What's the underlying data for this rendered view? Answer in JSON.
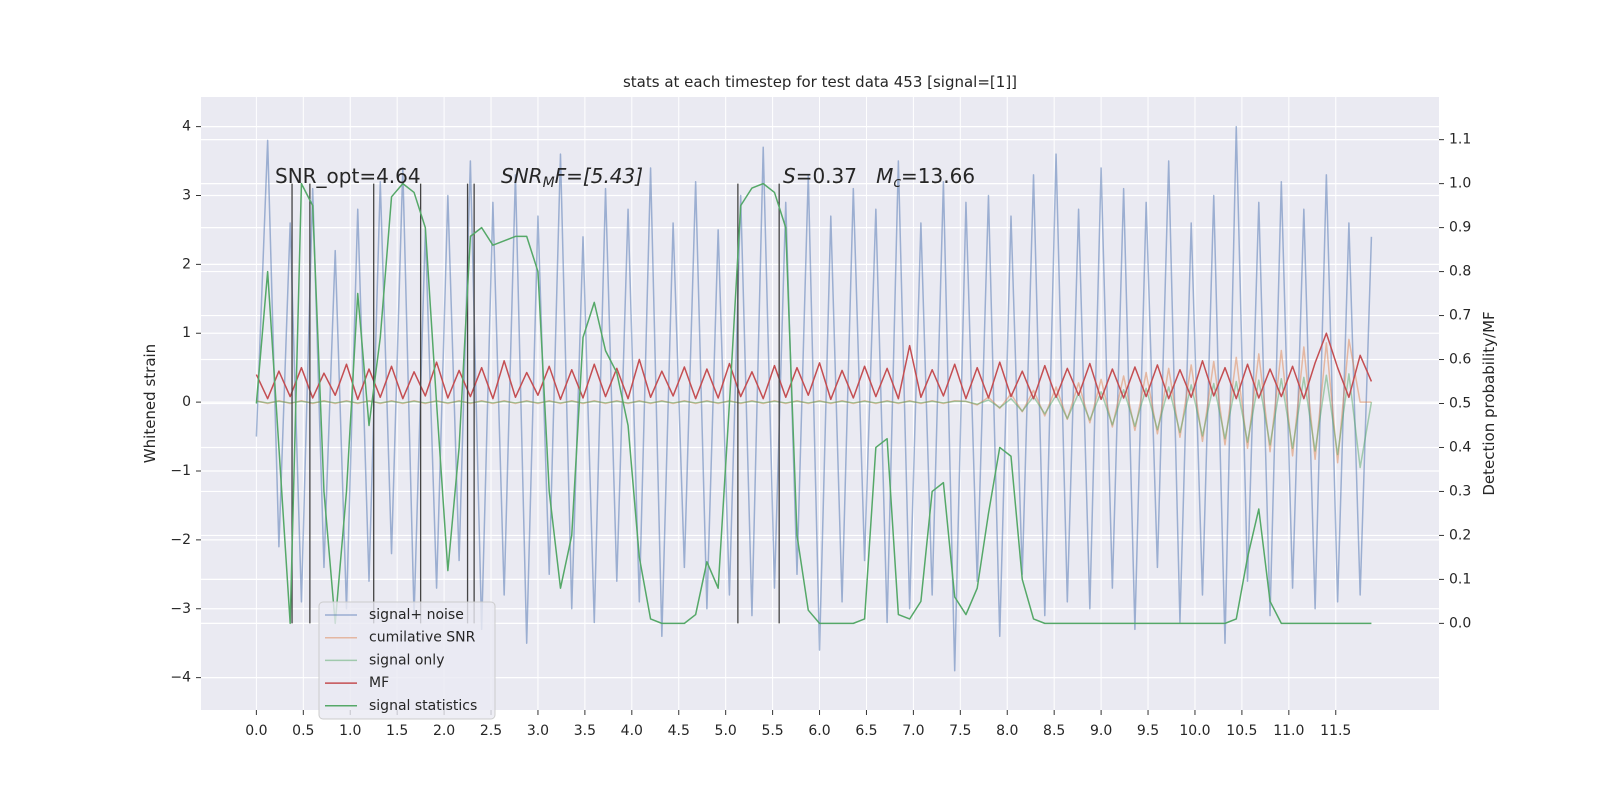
{
  "chart_data": {
    "type": "line",
    "title": "stats at each timestep for test data 453 [signal=[1]]",
    "ylabel": "Whitened strain",
    "y2label": "Detection probability/MF",
    "grid": true,
    "background": "#eaeaf2",
    "xlim": [
      -0.59,
      12.6
    ],
    "ylim": [
      -4.47,
      4.43
    ],
    "y2lim": [
      -0.197,
      1.197
    ],
    "xticks": [
      {
        "value": 0,
        "label": "0.0"
      },
      0.5,
      {
        "value": 1,
        "label": "1.0"
      },
      1.5,
      {
        "value": 2,
        "label": "2.0"
      },
      2.5,
      {
        "value": 3,
        "label": "3.0"
      },
      3.5,
      {
        "value": 4,
        "label": "4.0"
      },
      4.5,
      {
        "value": 5,
        "label": "5.0"
      },
      5.5,
      {
        "value": 6,
        "label": "6.0"
      },
      6.5,
      {
        "value": 7,
        "label": "7.0"
      },
      7.5,
      {
        "value": 8,
        "label": "8.0"
      },
      8.5,
      {
        "value": 9,
        "label": "9.0"
      },
      9.5,
      {
        "value": 10,
        "label": "10.0"
      },
      10.5,
      {
        "value": 11,
        "label": "11.0"
      },
      11.5
    ],
    "yticks": [
      {
        "value": -4,
        "label": "−4"
      },
      {
        "value": -3,
        "label": "−3"
      },
      {
        "value": -2,
        "label": "−2"
      },
      {
        "value": -1,
        "label": "−1"
      },
      0,
      1,
      2,
      3,
      4
    ],
    "y2ticks": [
      {
        "value": 0,
        "label": "0.0"
      },
      0.1,
      0.2,
      0.3,
      0.4,
      0.5,
      0.6,
      0.7,
      0.8,
      0.9,
      {
        "value": 1,
        "label": "1.0"
      },
      1.1
    ],
    "x": [
      0,
      0.12,
      0.24,
      0.36,
      0.48,
      0.6,
      0.72,
      0.84,
      0.96,
      1.08,
      1.2,
      1.32,
      1.44,
      1.56,
      1.68,
      1.8,
      1.92,
      2.04,
      2.16,
      2.28,
      2.4,
      2.52,
      2.64,
      2.76,
      2.88,
      3,
      3.12,
      3.24,
      3.36,
      3.48,
      3.6,
      3.72,
      3.84,
      3.96,
      4.08,
      4.2,
      4.32,
      4.44,
      4.56,
      4.68,
      4.8,
      4.92,
      5.04,
      5.16,
      5.28,
      5.4,
      5.52,
      5.64,
      5.76,
      5.88,
      6,
      6.12,
      6.24,
      6.36,
      6.48,
      6.6,
      6.72,
      6.84,
      6.96,
      7.08,
      7.2,
      7.32,
      7.44,
      7.56,
      7.68,
      7.8,
      7.92,
      8.04,
      8.16,
      8.28,
      8.4,
      8.52,
      8.64,
      8.76,
      8.88,
      9,
      9.12,
      9.24,
      9.36,
      9.48,
      9.6,
      9.72,
      9.84,
      9.96,
      10.08,
      10.2,
      10.32,
      10.44,
      10.56,
      10.68,
      10.8,
      10.92,
      11.04,
      11.16,
      11.28,
      11.4,
      11.52,
      11.64,
      11.76,
      11.88
    ],
    "series": [
      {
        "name": "signal+ noise",
        "color": "#4c72b0",
        "alpha": 0.5,
        "values": [
          -0.5,
          3.8,
          -2.1,
          2.6,
          -2.9,
          3.1,
          -2.4,
          2.2,
          -3.0,
          2.8,
          -2.6,
          3.2,
          -2.2,
          3.4,
          -3.1,
          2.5,
          -2.7,
          3.0,
          -2.3,
          3.5,
          -3.3,
          2.9,
          -2.8,
          3.3,
          -3.5,
          2.7,
          -2.5,
          3.6,
          -3.0,
          2.4,
          -3.2,
          3.1,
          -2.6,
          2.8,
          -2.9,
          3.4,
          -3.4,
          2.6,
          -2.4,
          3.2,
          -3.0,
          2.5,
          -2.8,
          3.0,
          -3.1,
          3.7,
          -2.7,
          2.9,
          -2.5,
          3.3,
          -3.6,
          2.7,
          -2.9,
          3.1,
          -2.3,
          2.8,
          -3.2,
          3.5,
          -3.0,
          2.6,
          -2.8,
          3.2,
          -3.9,
          2.9,
          -2.6,
          3.0,
          -3.4,
          2.7,
          -2.5,
          3.3,
          -3.1,
          3.6,
          -2.9,
          2.8,
          -3.0,
          3.4,
          -2.7,
          3.1,
          -3.3,
          2.9,
          -2.4,
          3.5,
          -3.2,
          2.6,
          -2.8,
          3.0,
          -3.5,
          4.0,
          -2.6,
          2.9,
          -3.1,
          3.2,
          -2.7,
          2.8,
          -3.0,
          3.3,
          -2.9,
          2.6,
          -2.8,
          2.4
        ]
      },
      {
        "name": "cumilative SNR",
        "color": "#dd8452",
        "alpha": 0.5,
        "values": [
          0.02,
          -0.02,
          0.02,
          -0.02,
          0.02,
          -0.02,
          0.02,
          -0.02,
          0.02,
          -0.02,
          0.02,
          -0.02,
          0.02,
          -0.02,
          0.02,
          -0.02,
          0.02,
          -0.02,
          0.02,
          -0.02,
          0.02,
          -0.02,
          0.02,
          -0.02,
          0.02,
          -0.02,
          0.02,
          -0.02,
          0.02,
          -0.02,
          0.02,
          -0.02,
          0.02,
          -0.02,
          0.02,
          -0.02,
          0.02,
          -0.02,
          0.02,
          -0.02,
          0.02,
          -0.02,
          0.02,
          -0.02,
          0.02,
          -0.02,
          0.02,
          -0.02,
          0.02,
          -0.02,
          0.02,
          -0.02,
          0.02,
          -0.02,
          0.02,
          -0.02,
          0.02,
          -0.02,
          0.02,
          -0.02,
          0.02,
          -0.02,
          0.02,
          0.01,
          -0.04,
          0.07,
          -0.09,
          0.12,
          -0.14,
          0.17,
          -0.2,
          0.22,
          -0.25,
          0.28,
          -0.3,
          0.33,
          -0.36,
          0.38,
          -0.41,
          0.43,
          -0.46,
          0.49,
          -0.51,
          0.54,
          -0.57,
          0.59,
          -0.62,
          0.65,
          -0.67,
          0.7,
          -0.72,
          0.75,
          -0.78,
          0.8,
          -0.83,
          0.86,
          -0.88,
          0.91,
          0.0,
          0.0
        ]
      },
      {
        "name": "signal only",
        "color": "#55a868",
        "alpha": 0.5,
        "values": [
          0.01,
          -0.01,
          0.01,
          -0.01,
          0.01,
          -0.01,
          0.01,
          -0.01,
          0.01,
          -0.01,
          0.01,
          -0.01,
          0.01,
          -0.01,
          0.01,
          -0.01,
          0.01,
          -0.01,
          0.01,
          -0.01,
          0.01,
          -0.01,
          0.01,
          -0.01,
          0.01,
          -0.01,
          0.01,
          -0.01,
          0.01,
          -0.01,
          0.01,
          -0.01,
          0.01,
          -0.01,
          0.01,
          -0.01,
          0.01,
          -0.01,
          0.01,
          -0.01,
          0.01,
          -0.01,
          0.01,
          -0.01,
          0.01,
          -0.01,
          0.01,
          -0.01,
          0.01,
          -0.01,
          0.01,
          -0.01,
          0.01,
          -0.01,
          0.01,
          -0.01,
          0.01,
          -0.01,
          0.01,
          -0.01,
          0.01,
          -0.01,
          0.01,
          0.01,
          -0.03,
          0.03,
          -0.08,
          0.05,
          -0.13,
          0.08,
          -0.17,
          0.1,
          -0.24,
          0.13,
          -0.26,
          0.15,
          -0.33,
          0.18,
          -0.35,
          0.2,
          -0.4,
          0.22,
          -0.44,
          0.25,
          -0.49,
          0.27,
          -0.53,
          0.3,
          -0.58,
          0.32,
          -0.62,
          0.34,
          -0.67,
          0.36,
          -0.71,
          0.39,
          -0.76,
          0.41,
          -0.95,
          0.0
        ]
      },
      {
        "name": "MF",
        "color": "#c44e52",
        "alpha": 1,
        "values": [
          0.4,
          0.05,
          0.45,
          0.08,
          0.5,
          0.06,
          0.42,
          0.1,
          0.55,
          0.04,
          0.48,
          0.07,
          0.52,
          0.05,
          0.44,
          0.09,
          0.58,
          0.06,
          0.46,
          0.08,
          0.5,
          0.05,
          0.6,
          0.07,
          0.43,
          0.1,
          0.52,
          0.04,
          0.47,
          0.06,
          0.55,
          0.08,
          0.49,
          0.05,
          0.62,
          0.07,
          0.45,
          0.09,
          0.51,
          0.05,
          0.48,
          0.06,
          0.56,
          0.08,
          0.44,
          0.05,
          0.53,
          0.07,
          0.5,
          0.1,
          0.57,
          0.04,
          0.46,
          0.06,
          0.52,
          0.08,
          0.49,
          0.05,
          0.82,
          0.07,
          0.47,
          0.09,
          0.55,
          0.05,
          0.5,
          0.06,
          0.58,
          0.08,
          0.45,
          0.05,
          0.53,
          0.07,
          0.49,
          0.1,
          0.56,
          0.04,
          0.48,
          0.06,
          0.51,
          0.08,
          0.54,
          0.05,
          0.47,
          0.07,
          0.6,
          0.09,
          0.5,
          0.05,
          0.55,
          0.06,
          0.48,
          0.08,
          0.52,
          0.05,
          0.57,
          1.0,
          0.5,
          0.07,
          0.68,
          0.3
        ]
      },
      {
        "name": "signal statistics",
        "color": "#55a868",
        "alpha": 1,
        "axis": "y2",
        "values": [
          0.5,
          0.8,
          0.4,
          0.0,
          1.0,
          0.95,
          0.3,
          0.0,
          0.3,
          0.75,
          0.45,
          0.65,
          0.97,
          1.0,
          0.98,
          0.9,
          0.5,
          0.12,
          0.4,
          0.88,
          0.9,
          0.86,
          0.87,
          0.88,
          0.88,
          0.8,
          0.3,
          0.08,
          0.2,
          0.65,
          0.73,
          0.62,
          0.57,
          0.45,
          0.15,
          0.01,
          0.0,
          0.0,
          0.0,
          0.02,
          0.14,
          0.08,
          0.5,
          0.95,
          0.99,
          1.0,
          0.98,
          0.9,
          0.2,
          0.03,
          0.0,
          0.0,
          0.0,
          0.0,
          0.01,
          0.4,
          0.42,
          0.02,
          0.01,
          0.05,
          0.3,
          0.32,
          0.06,
          0.02,
          0.08,
          0.25,
          0.4,
          0.38,
          0.1,
          0.01,
          0.0,
          0.0,
          0.0,
          0.0,
          0.0,
          0.0,
          0.0,
          0.0,
          0.0,
          0.0,
          0.0,
          0.0,
          0.0,
          0.0,
          0.0,
          0.0,
          0.0,
          0.01,
          0.15,
          0.26,
          0.05,
          0.0,
          0.0,
          0.0,
          0.0,
          0.0,
          0.0,
          0.0,
          0.0,
          0.0
        ]
      }
    ],
    "vlines": {
      "x": [
        0.38,
        0.57,
        1.25,
        1.75,
        2.25,
        2.32,
        5.13,
        5.57
      ],
      "y2span": [
        0,
        1
      ],
      "color": "#444444"
    },
    "annotations": [
      {
        "parts": [
          {
            "text": "SNR_opt=4.64"
          }
        ]
      },
      {
        "parts": [
          {
            "text": "SNR",
            "italic": true
          },
          {
            "text": "M",
            "italic": true,
            "sub": true
          },
          {
            "text": "F=[5.43]",
            "italic": true
          }
        ]
      },
      {
        "parts": [
          {
            "text": "S",
            "italic": true
          },
          {
            "text": "=0.37   "
          },
          {
            "text": "M",
            "italic": true
          },
          {
            "text": "c",
            "italic": true,
            "sub": true
          },
          {
            "text": "=13.66"
          }
        ]
      }
    ],
    "legend": "lower left"
  }
}
